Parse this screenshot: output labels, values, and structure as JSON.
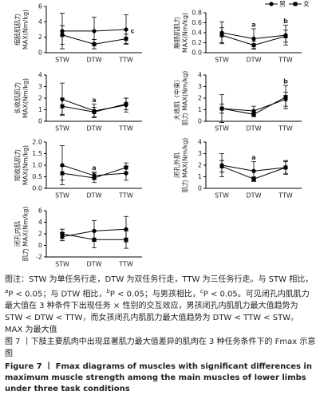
{
  "chart_data": [
    {
      "type": "line",
      "ylabel": [
        "缩胫肌肌力",
        "MAX(Nm/kg)"
      ],
      "categories": [
        "STW",
        "DTW",
        "TTW"
      ],
      "ylim": [
        0,
        6
      ],
      "yticks": [
        0,
        2,
        4,
        6
      ],
      "series": [
        {
          "marker": "circle",
          "color": "#000000",
          "values": [
            2.8,
            2.8,
            3.0
          ],
          "error": [
            2.3,
            1.8,
            1.9
          ]
        },
        {
          "marker": "square",
          "color": "#000000",
          "values": [
            2.3,
            1.1,
            1.8
          ],
          "error": [
            1.2,
            0.6,
            0.6
          ]
        }
      ],
      "annotations": [
        {
          "text": "c",
          "x": "TTW"
        }
      ]
    },
    {
      "type": "line",
      "ylabel": [
        "腓肠肌肌力",
        "MAX(Nm/kg)"
      ],
      "categories": [
        "STW",
        "DTW",
        "TTW"
      ],
      "ylim": [
        0,
        0.8
      ],
      "yticks": [
        {
          "value": 0,
          "label": "0.0"
        },
        0.2,
        0.4,
        0.6,
        0.8
      ],
      "legend": "top-right",
      "series": [
        {
          "name": "男",
          "marker": "circle",
          "color": "#000000",
          "values": [
            0.4,
            0.28,
            0.35
          ],
          "error": [
            0.22,
            0.2,
            0.2
          ]
        },
        {
          "name": "女",
          "marker": "square",
          "color": "#000000",
          "values": [
            0.35,
            0.15,
            0.33
          ],
          "error": [
            0.15,
            0.08,
            0.12
          ]
        }
      ],
      "annotations": [
        {
          "text": "a",
          "x": "DTW"
        },
        {
          "text": "b",
          "x": "TTW"
        }
      ]
    },
    {
      "type": "line",
      "ylabel": [
        "长收肌肌力",
        "MAX(Nm/kg)"
      ],
      "categories": [
        "STW",
        "DTW",
        "TTW"
      ],
      "ylim": [
        0,
        4
      ],
      "yticks": [
        0,
        1,
        2,
        3,
        4
      ],
      "series": [
        {
          "marker": "circle",
          "color": "#000000",
          "values": [
            1.9,
            0.9,
            1.4
          ],
          "error": [
            1.4,
            0.6,
            0.6
          ]
        },
        {
          "marker": "square",
          "color": "#000000",
          "values": [
            1.3,
            0.8,
            1.5
          ],
          "error": [
            0.7,
            0.4,
            0.5
          ]
        }
      ],
      "annotations": [
        {
          "text": "a",
          "x": "DTW"
        }
      ]
    },
    {
      "type": "line",
      "ylabel": [
        "大收肌（中束）",
        "肌力 MAX(Nm/kg)"
      ],
      "categories": [
        "STW",
        "DTW",
        "TTW"
      ],
      "ylim": [
        0,
        4
      ],
      "yticks": [
        0,
        1,
        2,
        3,
        4
      ],
      "series": [
        {
          "marker": "circle",
          "color": "#000000",
          "values": [
            1.1,
            0.9,
            1.9
          ],
          "error": [
            0.4,
            0.4,
            0.6
          ]
        },
        {
          "marker": "square",
          "color": "#000000",
          "values": [
            1.1,
            0.6,
            2.1
          ],
          "error": [
            1.2,
            0.2,
            1.0
          ]
        }
      ],
      "annotations": [
        {
          "text": "b",
          "x": "TTW"
        }
      ]
    },
    {
      "type": "line",
      "ylabel": [
        "短收肌肌力",
        "MAX(Nm/kg)"
      ],
      "categories": [
        "STW",
        "DTW",
        "TTW"
      ],
      "ylim": [
        0,
        2
      ],
      "yticks": [
        {
          "value": 0,
          "label": "0.0"
        },
        0.5,
        {
          "value": 1,
          "label": "1.0"
        },
        1.5,
        {
          "value": 2,
          "label": "2.0"
        }
      ],
      "series": [
        {
          "marker": "circle",
          "color": "#000000",
          "values": [
            1.0,
            0.55,
            0.65
          ],
          "error": [
            0.85,
            0.15,
            0.3
          ]
        },
        {
          "marker": "square",
          "color": "#000000",
          "values": [
            0.65,
            0.45,
            0.9
          ],
          "error": [
            0.3,
            0.2,
            0.2
          ]
        }
      ],
      "annotations": [
        {
          "text": "a",
          "x": "DTW"
        }
      ]
    },
    {
      "type": "line",
      "ylabel": [
        "闭孔外肌",
        "肌力 MAX(Nm/kg)"
      ],
      "categories": [
        "STW",
        "DTW",
        "TTW"
      ],
      "ylim": [
        0,
        4
      ],
      "yticks": [
        0,
        1,
        2,
        3,
        4
      ],
      "series": [
        {
          "marker": "circle",
          "color": "#000000",
          "values": [
            2.0,
            1.5,
            1.8
          ],
          "error": [
            1.0,
            0.8,
            0.6
          ]
        },
        {
          "marker": "square",
          "color": "#000000",
          "values": [
            1.9,
            0.8,
            1.8
          ],
          "error": [
            0.5,
            0.2,
            0.5
          ]
        }
      ],
      "annotations": [
        {
          "text": "a",
          "x": "DTW"
        }
      ]
    },
    {
      "type": "line",
      "ylabel": [
        "闭孔内肌",
        "肌力 MAX(Nm/kg)"
      ],
      "categories": [
        "STW",
        "DTW",
        "TTW"
      ],
      "ylim": [
        -2,
        6
      ],
      "yticks": [
        -2,
        0,
        2,
        4,
        6
      ],
      "series": [
        {
          "marker": "circle",
          "color": "#000000",
          "values": [
            1.5,
            2.5,
            2.8
          ],
          "error": [
            0.7,
            1.8,
            2.2
          ]
        },
        {
          "marker": "square",
          "color": "#000000",
          "values": [
            2.0,
            1.0,
            1.0
          ],
          "error": [
            0.8,
            1.4,
            1.5
          ]
        }
      ],
      "annotations": []
    }
  ],
  "note": [
    "图注：STW 为单任务行走，DTW 为双任务行走，TTW 为三任务行走。与 STW 相比，",
    "a",
    "P < 0.05；与 DTW 相比，",
    "b",
    "P < 0.05；与男孩相比，",
    "c",
    "P < 0.05。可见闭孔内肌肌力最大值在 3 种条件下出现任务 × 性别的交互效应，男孩闭孔内肌肌力最大值趋势为 STW < DTW < TTW，而女孩闭孔内肌肌力最大值趋势为 DTW < TTW < STW。MAX 为最大值"
  ],
  "figure_title_cn": "图 7 丨下肢主要肌肉中出现显著肌力最大值差异的肌肉在 3 种任务条件下的 Fmax 示意图",
  "figure_title_en": "Figure 7 丨 Fmax diagrams of muscles with significant differences in maximum muscle strength among the main muscles of lower limbs under three task conditions"
}
